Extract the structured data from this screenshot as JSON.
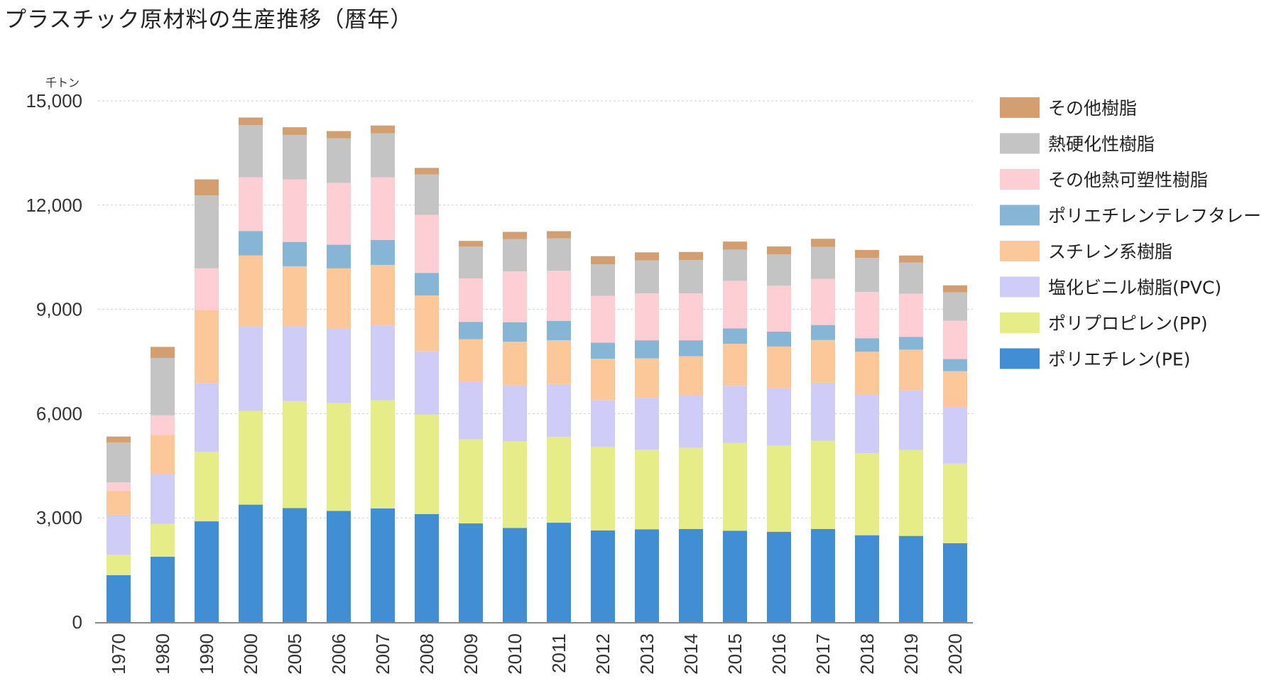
{
  "page": {
    "title": "プラスチック原材料の生産推移（暦年）"
  },
  "chart_data": {
    "type": "bar",
    "stacked": true,
    "title": "プラスチック原材料の生産推移（暦年）",
    "unit": "千トン",
    "xlabel": "",
    "ylabel": "千トン",
    "ylim": [
      0,
      15000
    ],
    "yticks": [
      0,
      3000,
      6000,
      9000,
      12000,
      15000
    ],
    "ytick_labels": [
      "0",
      "3,000",
      "6,000",
      "9,000",
      "12,000",
      "15,000"
    ],
    "grid": true,
    "legend_position": "right",
    "categories": [
      "1970",
      "1980",
      "1990",
      "2000",
      "2005",
      "2006",
      "2007",
      "2008",
      "2009",
      "2010",
      "2011",
      "2012",
      "2013",
      "2014",
      "2015",
      "2016",
      "2017",
      "2018",
      "2019",
      "2020"
    ],
    "series": [
      {
        "name": "ポリエチレン(PE)",
        "color": "#428ed5",
        "values": [
          1350,
          1880,
          2900,
          3380,
          3280,
          3200,
          3270,
          3110,
          2840,
          2710,
          2860,
          2640,
          2670,
          2680,
          2630,
          2600,
          2680,
          2500,
          2480,
          2270
        ]
      },
      {
        "name": "ポリプロピレン(PP)",
        "color": "#e6ec88",
        "values": [
          590,
          950,
          2000,
          2700,
          3080,
          3100,
          3110,
          2860,
          2420,
          2490,
          2470,
          2400,
          2290,
          2340,
          2530,
          2480,
          2540,
          2360,
          2470,
          2290
        ]
      },
      {
        "name": "塩化ビニル樹脂(PVC)",
        "color": "#cfcdf8",
        "values": [
          1150,
          1430,
          1980,
          2440,
          2150,
          2150,
          2160,
          1820,
          1650,
          1610,
          1520,
          1350,
          1490,
          1510,
          1640,
          1650,
          1670,
          1700,
          1720,
          1610
        ]
      },
      {
        "name": "スチレン系樹脂",
        "color": "#fcc89a",
        "values": [
          680,
          1130,
          2100,
          2030,
          1730,
          1730,
          1740,
          1610,
          1230,
          1260,
          1260,
          1190,
          1140,
          1120,
          1210,
          1200,
          1230,
          1220,
          1170,
          1050
        ]
      },
      {
        "name": "ポリエチレンテレフタレート(PET)",
        "color": "#86b5d5",
        "values": [
          0,
          0,
          0,
          700,
          700,
          680,
          720,
          650,
          500,
          560,
          560,
          460,
          520,
          460,
          440,
          430,
          430,
          390,
          370,
          350
        ]
      },
      {
        "name": "その他熱可塑性樹脂",
        "color": "#fdcfd4",
        "values": [
          250,
          560,
          1200,
          1550,
          1800,
          1780,
          1800,
          1670,
          1250,
          1460,
          1440,
          1350,
          1350,
          1350,
          1370,
          1320,
          1330,
          1330,
          1240,
          1100
        ]
      },
      {
        "name": "熱硬化性樹脂",
        "color": "#c4c4c4",
        "values": [
          1150,
          1650,
          2100,
          1500,
          1280,
          1280,
          1270,
          1160,
          920,
          930,
          930,
          910,
          950,
          960,
          900,
          900,
          920,
          980,
          900,
          820
        ]
      },
      {
        "name": "その他樹脂",
        "color": "#d39f70",
        "values": [
          170,
          320,
          460,
          220,
          220,
          210,
          220,
          190,
          160,
          210,
          210,
          230,
          230,
          230,
          230,
          230,
          230,
          230,
          200,
          200
        ]
      }
    ]
  }
}
